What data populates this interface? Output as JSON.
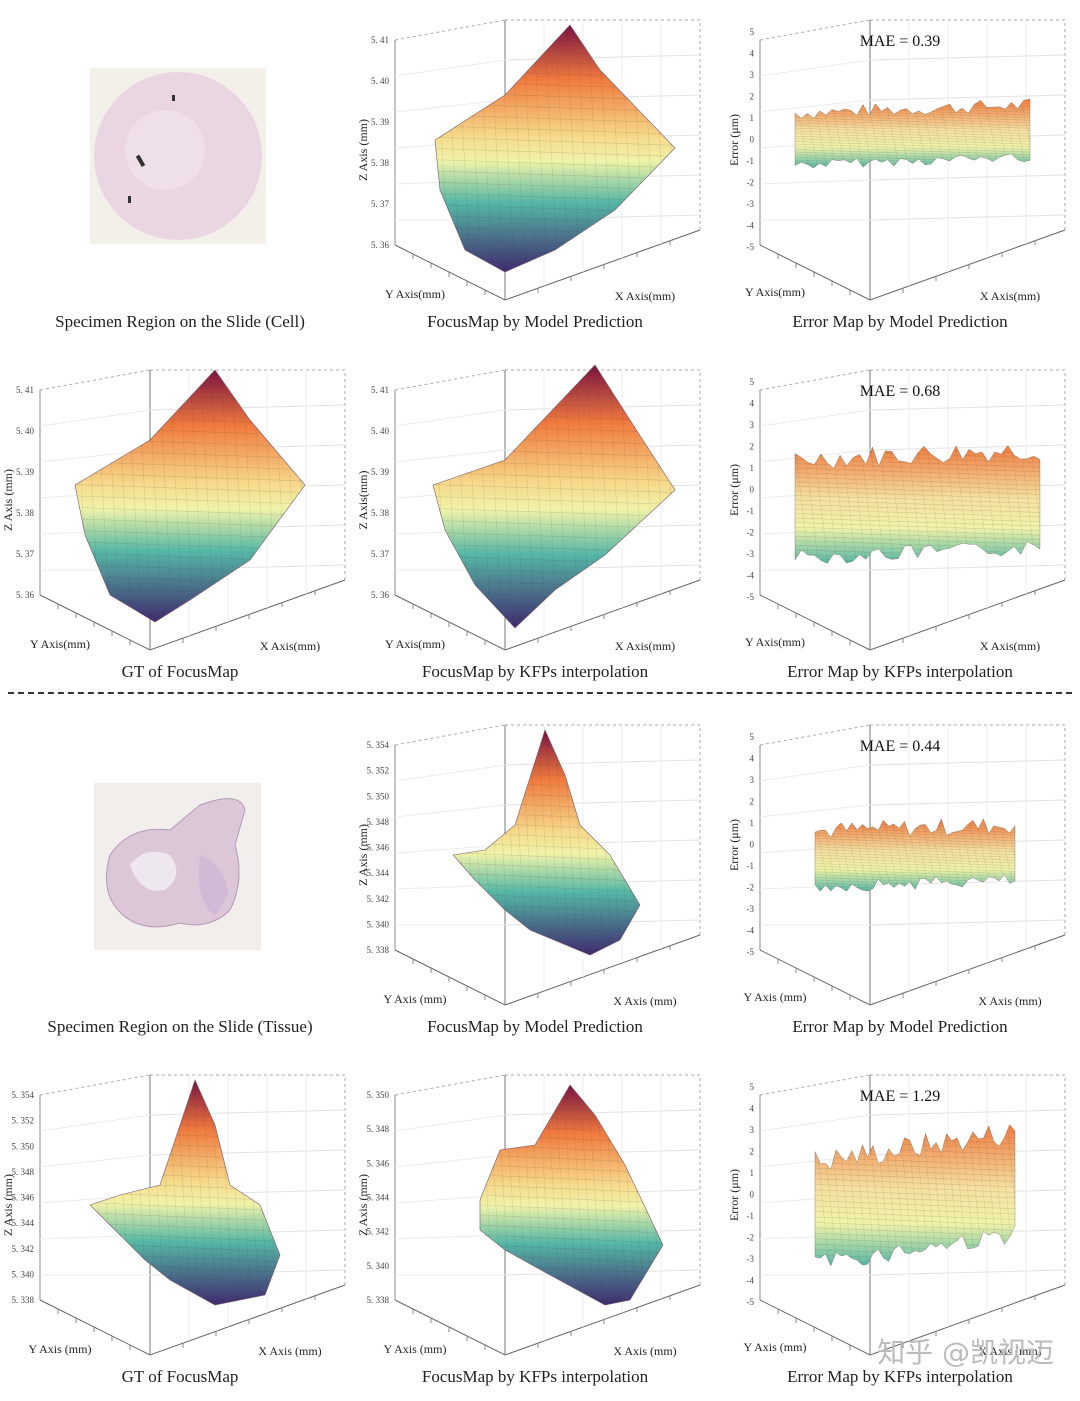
{
  "figure": {
    "colors": {
      "surface_low": "#3f2a6e",
      "surface_mid": "#55b7a6",
      "surface_mid2": "#f0f3a8",
      "surface_high": "#f07a3e",
      "surface_top": "#7a1240",
      "grid": "#c9c9c9",
      "slide_cell": "#ead5e2",
      "slide_tissue": "#dcc7d8"
    },
    "divider_label": "",
    "watermark": "知乎 @凯视迈",
    "panels": [
      {
        "id": "p1",
        "type": "image",
        "caption": "Specimen Region on the Slide (Cell)"
      },
      {
        "id": "p2",
        "type": "focusmap",
        "caption": "FocusMap by Model Prediction",
        "x_axis": "X Axis(mm)",
        "y_axis": "Y Axis(mm)",
        "z_axis": "Z Axis (mm)",
        "z_ticks": [
          "5. 41",
          "5. 40",
          "5. 39",
          "5. 38",
          "5. 37",
          "5. 36"
        ]
      },
      {
        "id": "p3",
        "type": "error",
        "caption": "Error Map by Model Prediction",
        "x_axis": "X Axis(mm)",
        "y_axis": "Y Axis(mm)",
        "z_axis": "Error (μm)",
        "z_ticks": [
          "5",
          "4",
          "3",
          "2",
          "1",
          "0",
          "-1",
          "-2",
          "-3",
          "-4",
          "-5"
        ],
        "mae": "MAE = 0.39"
      },
      {
        "id": "p4",
        "type": "focusmap",
        "caption": "GT of FocusMap",
        "x_axis": "X Axis(mm)",
        "y_axis": "Y Axis(mm)",
        "z_axis": "Z Axis (mm)",
        "z_ticks": [
          "5. 41",
          "5. 40",
          "5. 39",
          "5. 38",
          "5. 37",
          "5. 36"
        ]
      },
      {
        "id": "p5",
        "type": "focusmap",
        "caption": "FocusMap by KFPs interpolation",
        "x_axis": "X Axis(mm)",
        "y_axis": "Y Axis(mm)",
        "z_axis": "Z Axis(mm)",
        "z_ticks": [
          "5. 41",
          "5. 40",
          "5. 39",
          "5. 38",
          "5. 37",
          "5. 36"
        ]
      },
      {
        "id": "p6",
        "type": "error",
        "caption": "Error Map by KFPs interpolation",
        "x_axis": "X Axis(mm)",
        "y_axis": "Y Axis(mm)",
        "z_axis": "Error (μm)",
        "z_ticks": [
          "5",
          "4",
          "3",
          "2",
          "1",
          "0",
          "-1",
          "-2",
          "-3",
          "-4",
          "-5"
        ],
        "mae": "MAE = 0.68"
      },
      {
        "id": "p7",
        "type": "image",
        "caption": "Specimen Region on the Slide (Tissue)"
      },
      {
        "id": "p8",
        "type": "focusmap",
        "caption": "FocusMap by Model Prediction",
        "x_axis": "X Axis (mm)",
        "y_axis": "Y Axis (mm)",
        "z_axis": "Z Axis (mm)",
        "z_ticks": [
          "5. 354",
          "5. 352",
          "5. 350",
          "5. 348",
          "5. 346",
          "5. 344",
          "5. 342",
          "5. 340",
          "5. 338"
        ]
      },
      {
        "id": "p9",
        "type": "error",
        "caption": "Error Map by Model Prediction",
        "x_axis": "X Axis (mm)",
        "y_axis": "Y Axis (mm)",
        "z_axis": "Error (μm)",
        "z_ticks": [
          "5",
          "4",
          "3",
          "2",
          "1",
          "0",
          "-1",
          "-2",
          "-3",
          "-4",
          "-5"
        ],
        "mae": "MAE = 0.44"
      },
      {
        "id": "p10",
        "type": "focusmap",
        "caption": "GT of FocusMap",
        "x_axis": "X Axis (mm)",
        "y_axis": "Y Axis (mm)",
        "z_axis": "Z Axis (mm)",
        "z_ticks": [
          "5. 354",
          "5. 352",
          "5. 350",
          "5. 348",
          "5. 346",
          "5. 344",
          "5. 342",
          "5. 340",
          "5. 338"
        ]
      },
      {
        "id": "p11",
        "type": "focusmap",
        "caption": "FocusMap by KFPs interpolation",
        "x_axis": "X Axis (mm)",
        "y_axis": "Y Axis (mm)",
        "z_axis": "Z Axis (mm)",
        "z_ticks": [
          "5. 350",
          "5. 348",
          "5. 346",
          "5. 344",
          "5. 342",
          "5. 340",
          "5. 338"
        ]
      },
      {
        "id": "p12",
        "type": "error",
        "caption": "Error Map by KFPs interpolation",
        "x_axis": "X Axis (mm)",
        "y_axis": "Y Axis (mm)",
        "z_axis": "Error (μm)",
        "z_ticks": [
          "5",
          "4",
          "3",
          "2",
          "1",
          "0",
          "-1",
          "-2",
          "-3",
          "-4",
          "-5"
        ],
        "mae": "MAE = 1.29"
      }
    ]
  }
}
